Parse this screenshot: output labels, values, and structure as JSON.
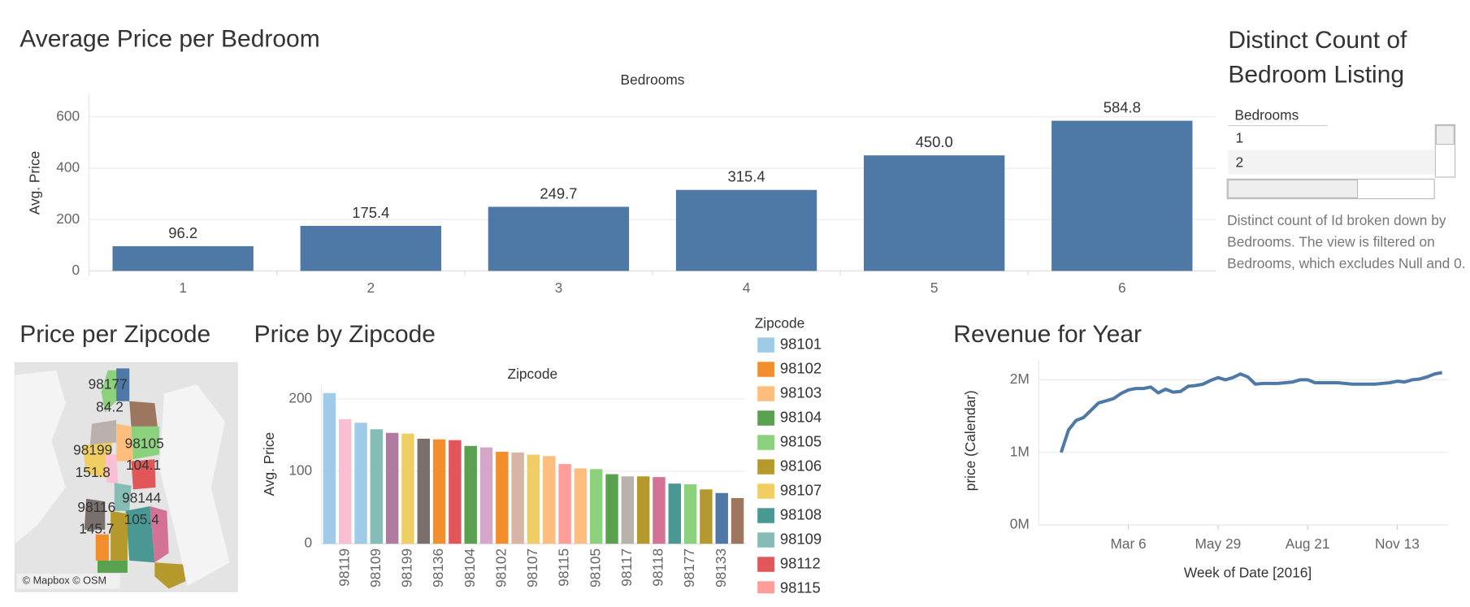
{
  "chart_data": [
    {
      "type": "bar",
      "title": "Average Price per Bedroom",
      "x_label": "Bedrooms",
      "y_label": "Avg. Price",
      "categories": [
        "1",
        "2",
        "3",
        "4",
        "5",
        "6"
      ],
      "values": [
        96.2,
        175.4,
        249.7,
        315.4,
        450.0,
        584.8
      ],
      "value_labels": [
        "96.2",
        "175.4",
        "249.7",
        "315.4",
        "450.0",
        "584.8"
      ],
      "color": "#4e79a7",
      "ylim": [
        0,
        690
      ],
      "yticks": [
        0,
        200,
        400,
        600
      ],
      "grid": true
    },
    {
      "type": "bar",
      "title": "Price by Zipcode",
      "x_label": "Zipcode",
      "y_label": "Avg. Price",
      "categories": [
        null,
        "98119",
        null,
        "98109",
        null,
        "98199",
        null,
        "98136",
        null,
        "98104",
        null,
        "98102",
        null,
        "98107",
        null,
        "98115",
        null,
        "98105",
        null,
        "98117",
        null,
        "98118",
        null,
        "98177",
        null,
        "98133",
        null
      ],
      "values": [
        208,
        172,
        167,
        158,
        153,
        152,
        145,
        144,
        143,
        135,
        133,
        127,
        126,
        123,
        121,
        110,
        104,
        103,
        96,
        93,
        93,
        92,
        83,
        82,
        75,
        70,
        63
      ],
      "colors": [
        "#a0cbe8",
        "#fabfd2",
        "#a0cbe8",
        "#86bcb6",
        "#b07aa1",
        "#f1ce63",
        "#79706e",
        "#f28e2b",
        "#e15759",
        "#59a14f",
        "#d4a6c8",
        "#f28e2b",
        "#d7b5a6",
        "#f1ce63",
        "#ffbe7d",
        "#ff9d9a",
        "#ffbe7d",
        "#8cd17d",
        "#59a14f",
        "#bab0ac",
        "#b6992d",
        "#d37295",
        "#499894",
        "#8cd17d",
        "#b6992d",
        "#4e79a7",
        "#9d7660"
      ],
      "ylim": [
        0,
        220
      ],
      "yticks": [
        0,
        100,
        200
      ],
      "grid": true,
      "legend": {
        "title": "Zipcode",
        "position": "right",
        "items": [
          {
            "label": "98101",
            "color": "#a0cbe8"
          },
          {
            "label": "98102",
            "color": "#f28e2b"
          },
          {
            "label": "98103",
            "color": "#ffbe7d"
          },
          {
            "label": "98104",
            "color": "#59a14f"
          },
          {
            "label": "98105",
            "color": "#8cd17d"
          },
          {
            "label": "98106",
            "color": "#b6992d"
          },
          {
            "label": "98107",
            "color": "#f1ce63"
          },
          {
            "label": "98108",
            "color": "#499894"
          },
          {
            "label": "98109",
            "color": "#86bcb6"
          },
          {
            "label": "98112",
            "color": "#e15759"
          },
          {
            "label": "98115",
            "color": "#ff9d9a"
          }
        ]
      }
    },
    {
      "type": "line",
      "title": "Revenue for Year",
      "x_label": "Week of Date [2016]",
      "y_label": "price (Calendar)",
      "x": [
        "2016-01-03",
        "2016-01-10",
        "2016-01-17",
        "2016-01-24",
        "2016-01-31",
        "2016-02-07",
        "2016-02-14",
        "2016-02-21",
        "2016-02-28",
        "2016-03-06",
        "2016-03-13",
        "2016-03-20",
        "2016-03-27",
        "2016-04-03",
        "2016-04-10",
        "2016-04-17",
        "2016-04-24",
        "2016-05-01",
        "2016-05-08",
        "2016-05-15",
        "2016-05-22",
        "2016-05-29",
        "2016-06-05",
        "2016-06-12",
        "2016-06-19",
        "2016-06-26",
        "2016-07-03",
        "2016-07-10",
        "2016-07-17",
        "2016-07-24",
        "2016-07-31",
        "2016-08-07",
        "2016-08-14",
        "2016-08-21",
        "2016-08-28",
        "2016-09-04",
        "2016-09-11",
        "2016-09-18",
        "2016-09-25",
        "2016-10-02",
        "2016-10-09",
        "2016-10-16",
        "2016-10-23",
        "2016-10-30",
        "2016-11-06",
        "2016-11-13",
        "2016-11-20",
        "2016-11-27",
        "2016-12-04",
        "2016-12-11",
        "2016-12-18",
        "2016-12-25"
      ],
      "series": [
        {
          "name": "price (Calendar)",
          "color": "#4e79a7",
          "values": [
            1000000,
            1310000,
            1440000,
            1480000,
            1580000,
            1680000,
            1710000,
            1740000,
            1810000,
            1860000,
            1880000,
            1880000,
            1900000,
            1820000,
            1870000,
            1830000,
            1840000,
            1910000,
            1920000,
            1940000,
            1990000,
            2030000,
            2000000,
            2030000,
            2080000,
            2040000,
            1940000,
            1950000,
            1950000,
            1950000,
            1960000,
            1970000,
            2000000,
            2000000,
            1960000,
            1960000,
            1960000,
            1960000,
            1950000,
            1940000,
            1940000,
            1940000,
            1940000,
            1950000,
            1960000,
            1980000,
            1970000,
            2000000,
            2010000,
            2040000,
            2080000,
            2100000
          ]
        }
      ],
      "xlim": [
        "2015-12-13",
        "2016-12-31"
      ],
      "xticks": [
        {
          "value": "2016-03-06",
          "label": "Mar 6"
        },
        {
          "value": "2016-05-29",
          "label": "May 29"
        },
        {
          "value": "2016-08-21",
          "label": "Aug 21"
        },
        {
          "value": "2016-11-13",
          "label": "Nov 13"
        }
      ],
      "ylim": [
        0,
        2260000
      ],
      "yticks": [
        {
          "value": 0,
          "label": "0M"
        },
        {
          "value": 1000000,
          "label": "1M"
        },
        {
          "value": 2000000,
          "label": "2M"
        }
      ],
      "grid": true
    }
  ],
  "map": {
    "title": "Price per Zipcode",
    "labels": [
      "98177",
      "84.2",
      "98105",
      "98199",
      "104.1",
      "151.8",
      "98144",
      "98116",
      "105.4",
      "145.7"
    ],
    "attribution": "© Mapbox © OSM"
  },
  "distinct_panel": {
    "title": "Distinct Count of Bedroom Listing",
    "table": {
      "header": "Bedrooms",
      "rows": [
        "1",
        "2"
      ]
    },
    "description": "Distinct count of Id broken down by Bedrooms. The view is filtered on Bedrooms, which excludes Null and 0."
  }
}
